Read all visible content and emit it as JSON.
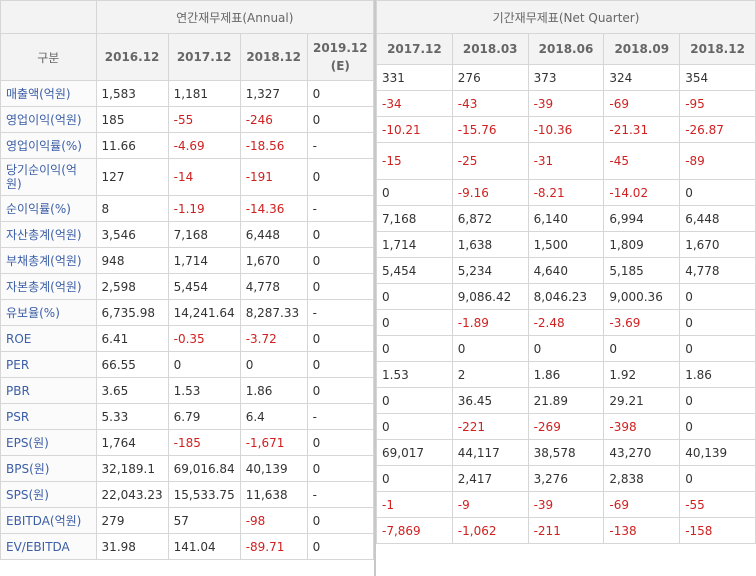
{
  "annual": {
    "title": "연간재무제표(Annual)",
    "corner": "구분",
    "columns": [
      "2016.12",
      "2017.12",
      "2018.12",
      "2019.12\n(E)"
    ],
    "rows": [
      {
        "label": "매출액(억원)",
        "values": [
          "1,583",
          "1,181",
          "1,327",
          "0"
        ]
      },
      {
        "label": "영업이익(억원)",
        "values": [
          "185",
          "-55",
          "-246",
          "0"
        ]
      },
      {
        "label": "영업이익률(%)",
        "values": [
          "11.66",
          "-4.69",
          "-18.56",
          "-"
        ]
      },
      {
        "label": "당기순이익(억원)",
        "values": [
          "127",
          "-14",
          "-191",
          "0"
        ]
      },
      {
        "label": "순이익률(%)",
        "values": [
          "8",
          "-1.19",
          "-14.36",
          "-"
        ]
      },
      {
        "label": "자산총계(억원)",
        "values": [
          "3,546",
          "7,168",
          "6,448",
          "0"
        ]
      },
      {
        "label": "부채총계(억원)",
        "values": [
          "948",
          "1,714",
          "1,670",
          "0"
        ]
      },
      {
        "label": "자본총계(억원)",
        "values": [
          "2,598",
          "5,454",
          "4,778",
          "0"
        ]
      },
      {
        "label": "유보율(%)",
        "values": [
          "6,735.98",
          "14,241.64",
          "8,287.33",
          "-"
        ]
      },
      {
        "label": "ROE",
        "values": [
          "6.41",
          "-0.35",
          "-3.72",
          "0"
        ]
      },
      {
        "label": "PER",
        "values": [
          "66.55",
          "0",
          "0",
          "0"
        ]
      },
      {
        "label": "PBR",
        "values": [
          "3.65",
          "1.53",
          "1.86",
          "0"
        ]
      },
      {
        "label": "PSR",
        "values": [
          "5.33",
          "6.79",
          "6.4",
          "-"
        ]
      },
      {
        "label": "EPS(원)",
        "values": [
          "1,764",
          "-185",
          "-1,671",
          "0"
        ]
      },
      {
        "label": "BPS(원)",
        "values": [
          "32,189.1",
          "69,016.84",
          "40,139",
          "0"
        ]
      },
      {
        "label": "SPS(원)",
        "values": [
          "22,043.23",
          "15,533.75",
          "11,638",
          "-"
        ]
      },
      {
        "label": "EBITDA(억원)",
        "values": [
          "279",
          "57",
          "-98",
          "0"
        ]
      },
      {
        "label": "EV/EBITDA",
        "values": [
          "31.98",
          "141.04",
          "-89.71",
          "0"
        ]
      }
    ]
  },
  "quarter": {
    "title": "기간재무제표(Net Quarter)",
    "columns": [
      "2017.12",
      "2018.03",
      "2018.06",
      "2018.09",
      "2018.12"
    ],
    "rows": [
      [
        "331",
        "276",
        "373",
        "324",
        "354"
      ],
      [
        "-34",
        "-43",
        "-39",
        "-69",
        "-95"
      ],
      [
        "-10.21",
        "-15.76",
        "-10.36",
        "-21.31",
        "-26.87"
      ],
      [
        "-15",
        "-25",
        "-31",
        "-45",
        "-89"
      ],
      [
        "0",
        "-9.16",
        "-8.21",
        "-14.02",
        "0"
      ],
      [
        "7,168",
        "6,872",
        "6,140",
        "6,994",
        "6,448"
      ],
      [
        "1,714",
        "1,638",
        "1,500",
        "1,809",
        "1,670"
      ],
      [
        "5,454",
        "5,234",
        "4,640",
        "5,185",
        "4,778"
      ],
      [
        "0",
        "9,086.42",
        "8,046.23",
        "9,000.36",
        "0"
      ],
      [
        "0",
        "-1.89",
        "-2.48",
        "-3.69",
        "0"
      ],
      [
        "0",
        "0",
        "0",
        "0",
        "0"
      ],
      [
        "1.53",
        "2",
        "1.86",
        "1.92",
        "1.86"
      ],
      [
        "0",
        "36.45",
        "21.89",
        "29.21",
        "0"
      ],
      [
        "0",
        "-221",
        "-269",
        "-398",
        "0"
      ],
      [
        "69,017",
        "44,117",
        "38,578",
        "43,270",
        "40,139"
      ],
      [
        "0",
        "2,417",
        "3,276",
        "2,838",
        "0"
      ],
      [
        "-1",
        "-9",
        "-39",
        "-69",
        "-55"
      ],
      [
        "-7,869",
        "-1,062",
        "-211",
        "-138",
        "-158"
      ]
    ]
  },
  "colors": {
    "negative": "#d02020",
    "label": "#3b5ea6",
    "header_bg": "#f3f3f3",
    "border": "#d6d6d6"
  }
}
